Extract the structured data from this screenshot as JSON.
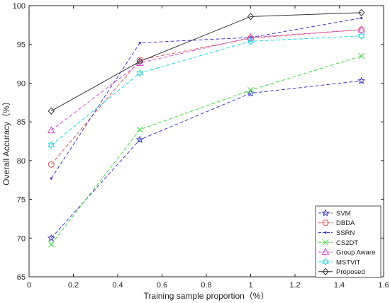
{
  "chart_data": {
    "type": "line",
    "xlabel": "Training sample proportion（%）",
    "ylabel": "Overall Accuracy（%）",
    "xlim": [
      0,
      1.6
    ],
    "ylim": [
      65,
      100
    ],
    "xticks": [
      "0",
      "0.2",
      "0.4",
      "0.6",
      "0.8",
      "1",
      "1.2",
      "1.4",
      "1.6"
    ],
    "yticks": [
      "65",
      "70",
      "75",
      "80",
      "85",
      "90",
      "95",
      "100"
    ],
    "x": [
      0.1,
      0.5,
      1.0,
      1.5
    ],
    "grid": false,
    "legend_position": "bottom-right",
    "series": [
      {
        "name": "SVM",
        "values": [
          70.0,
          82.7,
          88.7,
          90.3
        ],
        "color": "#3b3bc8",
        "dash": "dashed",
        "marker": "star"
      },
      {
        "name": "DBDA",
        "values": [
          79.5,
          93.0,
          95.8,
          96.9
        ],
        "color": "#e05858",
        "dash": "dashed",
        "marker": "circle"
      },
      {
        "name": "SSRN",
        "values": [
          77.7,
          95.2,
          95.9,
          98.4
        ],
        "color": "#3b3bc8",
        "dash": "dashed",
        "marker": "point"
      },
      {
        "name": "CS2DT",
        "values": [
          69.2,
          84.0,
          89.1,
          93.5
        ],
        "color": "#3ddc3d",
        "dash": "dashed",
        "marker": "x"
      },
      {
        "name": "Group Aware",
        "values": [
          83.9,
          92.6,
          95.9,
          96.9
        ],
        "color": "#d24fd2",
        "dash": "dashed",
        "marker": "triangle"
      },
      {
        "name": "MSTViT",
        "values": [
          82.0,
          91.3,
          95.4,
          96.1
        ],
        "color": "#1fd6e0",
        "dash": "dashed",
        "marker": "hexagram"
      },
      {
        "name": "Proposed",
        "values": [
          86.4,
          92.8,
          98.6,
          99.1
        ],
        "color": "#333333",
        "dash": "solid",
        "marker": "diamond"
      }
    ]
  }
}
